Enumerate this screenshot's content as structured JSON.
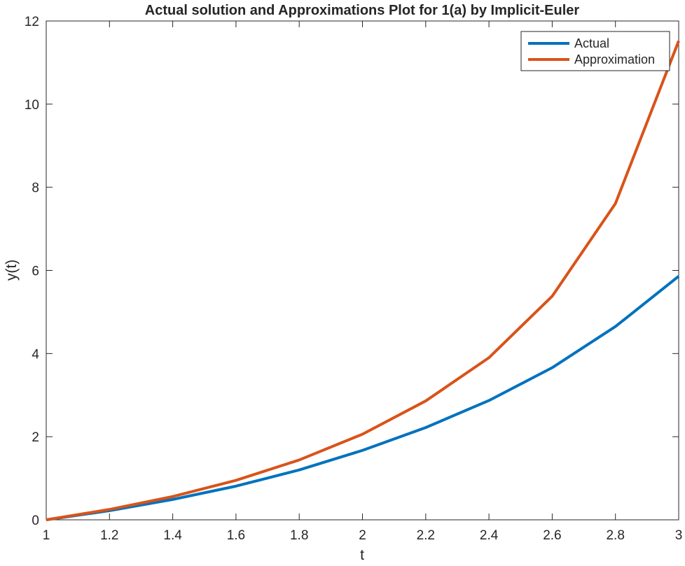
{
  "chart_data": {
    "type": "line",
    "title": "Actual solution and Approximations Plot for 1(a) by Implicit-Euler",
    "xlabel": "t",
    "ylabel": "y(t)",
    "xlim": [
      1,
      3
    ],
    "ylim": [
      0,
      12
    ],
    "xticks": [
      1,
      1.2,
      1.4,
      1.6,
      1.8,
      2,
      2.2,
      2.4,
      2.6,
      2.8,
      3
    ],
    "xtick_labels": [
      "1",
      "1.2",
      "1.4",
      "1.6",
      "1.8",
      "2",
      "2.2",
      "2.4",
      "2.6",
      "2.8",
      "3"
    ],
    "yticks": [
      0,
      2,
      4,
      6,
      8,
      10,
      12
    ],
    "ytick_labels": [
      "0",
      "2",
      "4",
      "6",
      "8",
      "10",
      "12"
    ],
    "grid": false,
    "legend_position": "top-right",
    "x": [
      1,
      1.2,
      1.4,
      1.6,
      1.8,
      2,
      2.2,
      2.4,
      2.6,
      2.8,
      3
    ],
    "series": [
      {
        "name": "Actual",
        "color": "#0072BD",
        "values": [
          0,
          0.22,
          0.49,
          0.81,
          1.2,
          1.67,
          2.22,
          2.87,
          3.66,
          4.65,
          5.86
        ]
      },
      {
        "name": "Approximation",
        "color": "#D95319",
        "values": [
          0,
          0.25,
          0.56,
          0.95,
          1.44,
          2.06,
          2.86,
          3.9,
          5.38,
          7.61,
          11.52
        ]
      }
    ]
  }
}
